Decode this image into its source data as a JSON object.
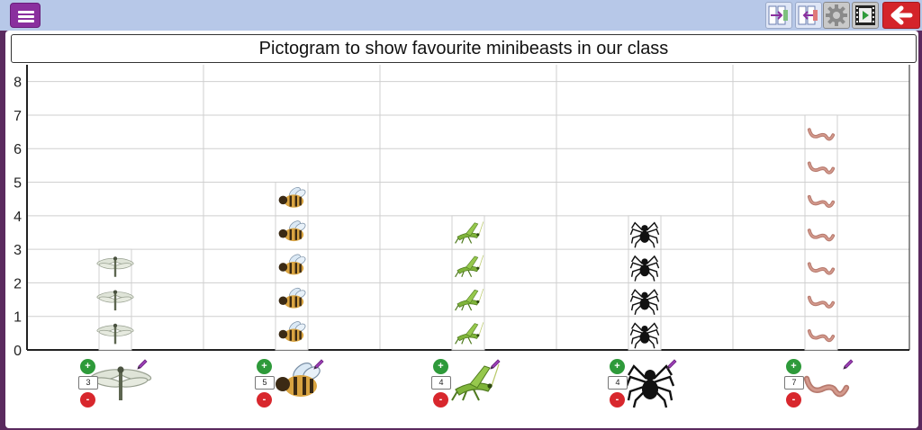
{
  "toolbar": {
    "menu_icon": "hamburger-icon",
    "add_column_icon": "add-column-icon",
    "remove_column_icon": "remove-column-icon",
    "settings_icon": "gear-icon",
    "video_icon": "film-icon",
    "back_icon": "back-arrow-icon"
  },
  "colors": {
    "toolbar": "#b7c8e8",
    "frame": "#5a2a5e",
    "plus": "#2e9a3a",
    "minus": "#d8272d",
    "menu": "#8a2f9e"
  },
  "chart_data": {
    "type": "bar",
    "title": "Pictogram to show favourite minibeasts in our class",
    "categories": [
      "dragonfly",
      "bee",
      "grasshopper",
      "spider",
      "worm"
    ],
    "values": [
      3,
      5,
      4,
      4,
      7
    ],
    "yticks": [
      "0",
      "1",
      "2",
      "3",
      "4",
      "5",
      "6",
      "7",
      "8"
    ],
    "ylim": [
      0,
      8.5
    ],
    "grid": true,
    "xlabel": "",
    "ylabel": ""
  },
  "counters": [
    "3",
    "5",
    "4",
    "4",
    "7"
  ],
  "controls": {
    "plus": "+",
    "minus": "-"
  }
}
